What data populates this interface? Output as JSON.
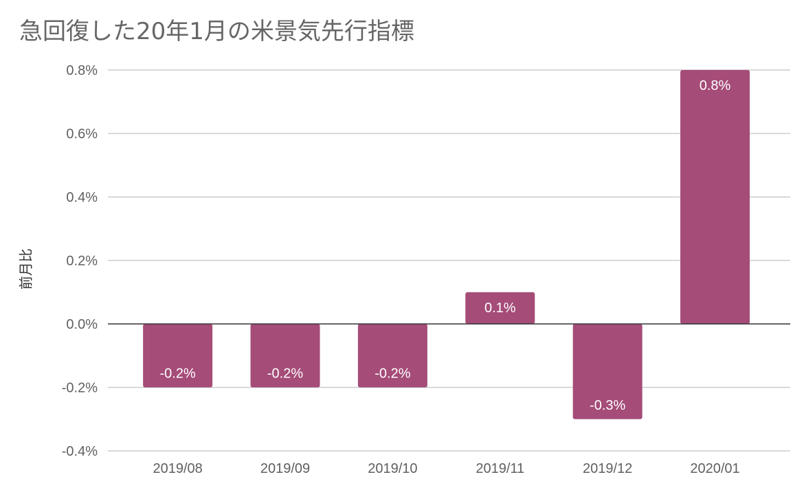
{
  "chart_data": {
    "type": "bar",
    "title": "急回復した20年1月の米景気先行指標",
    "ylabel": "前月比",
    "xlabel": "",
    "categories": [
      "2019/08",
      "2019/09",
      "2019/10",
      "2019/11",
      "2019/12",
      "2020/01"
    ],
    "values": [
      -0.2,
      -0.2,
      -0.2,
      0.1,
      -0.3,
      0.8
    ],
    "data_labels": [
      "-0.2%",
      "-0.2%",
      "-0.2%",
      "0.1%",
      "-0.3%",
      "0.8%"
    ],
    "ylim": [
      -0.4,
      0.8
    ],
    "y_ticks": [
      -0.4,
      -0.2,
      0.0,
      0.2,
      0.4,
      0.6,
      0.8
    ],
    "y_tick_labels": [
      "-0.4%",
      "-0.2%",
      "0.0%",
      "0.2%",
      "0.4%",
      "0.6%",
      "0.8%"
    ],
    "grid": true,
    "legend": "none",
    "bar_color": "#a54c78",
    "grid_color": "#cccccc",
    "zero_line_color": "#333333"
  }
}
